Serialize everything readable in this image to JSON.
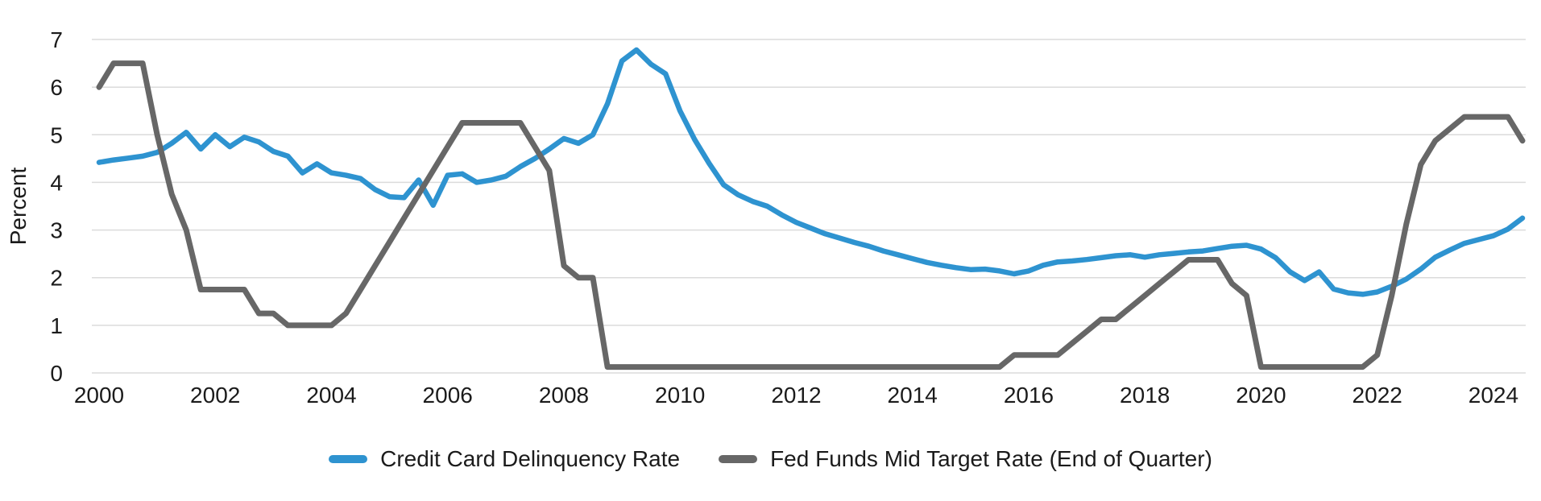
{
  "page": {
    "background_color": "#ffffff",
    "text_color": "#1b1b1b",
    "gridline_color": "#dbdbdb"
  },
  "chart_data": {
    "type": "line",
    "title": "",
    "xlabel": "",
    "ylabel": "Percent",
    "ylim": [
      0,
      7
    ],
    "yticks": [
      0,
      1,
      2,
      3,
      4,
      5,
      6,
      7
    ],
    "x_tick_labels": [
      "2000",
      "2002",
      "2004",
      "2006",
      "2008",
      "2010",
      "2012",
      "2014",
      "2016",
      "2018",
      "2020",
      "2022",
      "2024"
    ],
    "x_frequency": "quarterly",
    "x_start": "2000Q1",
    "x_end": "2024Q3",
    "grid": "horizontal",
    "legend_position": "bottom-center",
    "series": [
      {
        "name": "Credit Card Delinquency Rate",
        "color": "#2E93D0",
        "stroke_width": 6.5,
        "values": [
          4.42,
          4.47,
          4.51,
          4.55,
          4.63,
          4.82,
          5.05,
          4.7,
          5.0,
          4.75,
          4.95,
          4.85,
          4.65,
          4.55,
          4.2,
          4.39,
          4.2,
          4.15,
          4.08,
          3.85,
          3.7,
          3.68,
          4.05,
          3.52,
          4.15,
          4.18,
          4.0,
          4.05,
          4.13,
          4.33,
          4.5,
          4.7,
          4.92,
          4.82,
          5.0,
          5.65,
          6.55,
          6.78,
          6.48,
          6.28,
          5.5,
          4.9,
          4.4,
          3.95,
          3.74,
          3.6,
          3.5,
          3.32,
          3.16,
          3.04,
          2.92,
          2.83,
          2.74,
          2.66,
          2.56,
          2.48,
          2.4,
          2.32,
          2.26,
          2.21,
          2.17,
          2.18,
          2.14,
          2.08,
          2.14,
          2.26,
          2.33,
          2.35,
          2.38,
          2.42,
          2.46,
          2.48,
          2.43,
          2.48,
          2.51,
          2.54,
          2.56,
          2.61,
          2.66,
          2.68,
          2.6,
          2.42,
          2.12,
          1.94,
          2.12,
          1.76,
          1.68,
          1.65,
          1.7,
          1.82,
          1.97,
          2.18,
          2.43,
          2.58,
          2.72,
          2.8,
          2.88,
          3.02,
          3.25
        ]
      },
      {
        "name": "Fed Funds Mid Target Rate (End of Quarter)",
        "color": "#676767",
        "stroke_width": 7,
        "values": [
          6.0,
          6.5,
          6.5,
          6.5,
          5.0,
          3.75,
          3.0,
          1.75,
          1.75,
          1.75,
          1.75,
          1.25,
          1.25,
          1.0,
          1.0,
          1.0,
          1.0,
          1.25,
          1.75,
          2.25,
          2.75,
          3.25,
          3.75,
          4.25,
          4.75,
          5.25,
          5.25,
          5.25,
          5.25,
          5.25,
          4.75,
          4.25,
          2.25,
          2.0,
          2.0,
          0.125,
          0.125,
          0.125,
          0.125,
          0.125,
          0.125,
          0.125,
          0.125,
          0.125,
          0.125,
          0.125,
          0.125,
          0.125,
          0.125,
          0.125,
          0.125,
          0.125,
          0.125,
          0.125,
          0.125,
          0.125,
          0.125,
          0.125,
          0.125,
          0.125,
          0.125,
          0.125,
          0.125,
          0.375,
          0.375,
          0.375,
          0.375,
          0.625,
          0.875,
          1.125,
          1.125,
          1.375,
          1.625,
          1.875,
          2.125,
          2.375,
          2.375,
          2.375,
          1.875,
          1.625,
          0.125,
          0.125,
          0.125,
          0.125,
          0.125,
          0.125,
          0.125,
          0.125,
          0.375,
          1.625,
          3.125,
          4.375,
          4.875,
          5.125,
          5.375,
          5.375,
          5.375,
          5.375,
          4.875
        ]
      }
    ]
  }
}
